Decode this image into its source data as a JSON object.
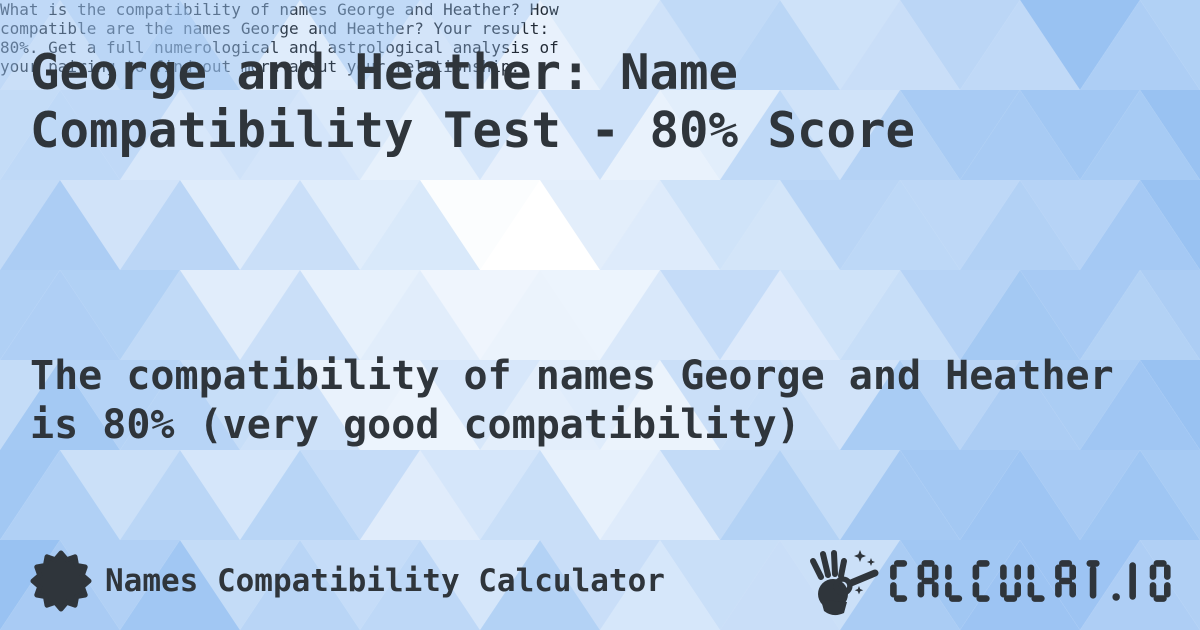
{
  "card": {
    "title": {
      "line1": "George and Heather: Name",
      "line2": "Compatibility Test - 80% Score"
    },
    "description": {
      "line1": "What is the compatibility of names George and Heather? How",
      "line2": "compatible are the names George and Heather? Your result:",
      "line3": "80%. Get a full numerological and astrological analysis of",
      "line4": "your pairing to find out more about your relationship."
    },
    "result": {
      "line1": "The compatibility of names George and Heather",
      "line2": "is 80% (very good compatibility)"
    },
    "score_percent": "80%"
  },
  "footer": {
    "label": "Names Compatibility Calculator",
    "logo_text": "CALCULAT.IO"
  },
  "colors": {
    "ink": "#2f353b",
    "body_ink": "#3a4148",
    "pattern_blue": "#99c2f2",
    "pattern_base": "#ffffff"
  }
}
